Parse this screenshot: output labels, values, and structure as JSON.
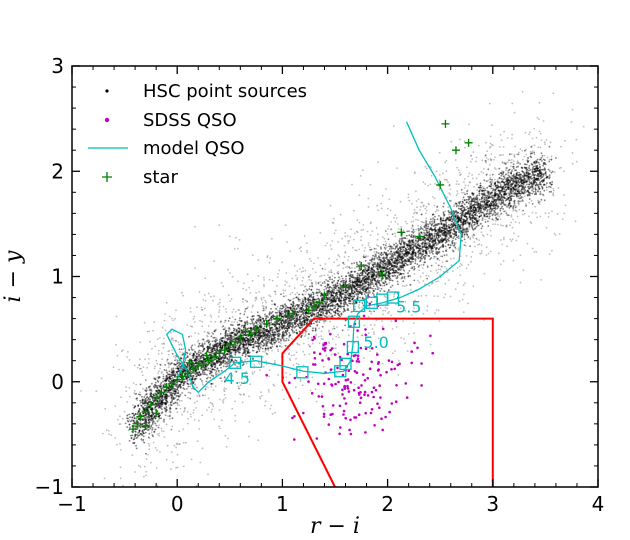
{
  "chart_data": {
    "type": "scatter",
    "title": "",
    "xlabel": "r − i",
    "ylabel": "i − y",
    "xlim": [
      -1,
      4
    ],
    "ylim": [
      -1,
      3
    ],
    "xticks": [
      "−1",
      "0",
      "1",
      "2",
      "3",
      "4"
    ],
    "yticks": [
      "−1",
      "0",
      "1",
      "2",
      "3"
    ],
    "xtick_values": [
      -1,
      0,
      1,
      2,
      3,
      4
    ],
    "ytick_values": [
      -1,
      0,
      1,
      2,
      3
    ],
    "legend_position": "upper-left",
    "legend": [
      {
        "label": "HSC point sources",
        "marker": "dot",
        "color": "#000000"
      },
      {
        "label": "SDSS QSO",
        "marker": "dot",
        "color": "#c000c0"
      },
      {
        "label": "model QSO",
        "marker": "line",
        "color": "#00bfbf"
      },
      {
        "label": "star",
        "marker": "plus",
        "color": "#008000"
      }
    ],
    "series": [
      {
        "name": "HSC point sources",
        "type": "density-scatter",
        "color": "#000000",
        "note_locus": "dense stellar locus running from about (-0.4,-0.45) to (2.6,2.1)",
        "locus": [
          [
            -0.4,
            -0.45
          ],
          [
            0.0,
            0.05
          ],
          [
            0.5,
            0.35
          ],
          [
            1.0,
            0.55
          ],
          [
            1.5,
            0.8
          ],
          [
            2.0,
            1.1
          ],
          [
            2.5,
            1.4
          ],
          [
            3.0,
            1.75
          ],
          [
            3.5,
            2.0
          ]
        ]
      },
      {
        "name": "SDSS QSO",
        "type": "scatter",
        "color": "#c000c0",
        "center": [
          1.65,
          0.05
        ],
        "spread": [
          0.28,
          0.28
        ]
      },
      {
        "name": "model QSO",
        "type": "line",
        "color": "#00bfbf",
        "points": [
          [
            2.18,
            2.47
          ],
          [
            2.3,
            2.2
          ],
          [
            2.45,
            1.95
          ],
          [
            2.6,
            1.65
          ],
          [
            2.7,
            1.4
          ],
          [
            2.68,
            1.15
          ],
          [
            2.5,
            1.0
          ],
          [
            2.3,
            0.88
          ],
          [
            2.12,
            0.8
          ],
          [
            1.95,
            0.75
          ],
          [
            1.8,
            0.72
          ],
          [
            1.72,
            0.65
          ],
          [
            1.68,
            0.55
          ],
          [
            1.67,
            0.35
          ],
          [
            1.65,
            0.2
          ],
          [
            1.58,
            0.1
          ],
          [
            1.4,
            0.08
          ],
          [
            1.2,
            0.1
          ],
          [
            1.0,
            0.15
          ],
          [
            0.75,
            0.2
          ],
          [
            0.55,
            0.18
          ],
          [
            0.45,
            0.1
          ],
          [
            0.3,
            0.0
          ],
          [
            0.2,
            -0.1
          ],
          [
            0.15,
            -0.05
          ],
          [
            0.1,
            0.1
          ],
          [
            0.0,
            0.25
          ],
          [
            -0.05,
            0.35
          ],
          [
            -0.1,
            0.45
          ],
          [
            -0.05,
            0.5
          ],
          [
            0.05,
            0.45
          ],
          [
            0.08,
            0.3
          ],
          [
            0.05,
            0.15
          ],
          [
            0.0,
            0.02
          ]
        ]
      },
      {
        "name": "model QSO redshift markers",
        "type": "square-markers",
        "color": "#00bfbf",
        "points": [
          [
            2.05,
            0.8
          ],
          [
            1.95,
            0.78
          ],
          [
            1.85,
            0.75
          ],
          [
            1.73,
            0.72
          ],
          [
            1.68,
            0.57
          ],
          [
            1.67,
            0.33
          ],
          [
            1.6,
            0.17
          ],
          [
            1.55,
            0.1
          ],
          [
            1.19,
            0.09
          ],
          [
            0.75,
            0.19
          ],
          [
            0.55,
            0.18
          ]
        ]
      },
      {
        "name": "star",
        "type": "scatter",
        "marker": "plus",
        "color": "#008000",
        "points": [
          [
            2.55,
            2.45
          ],
          [
            2.65,
            2.2
          ],
          [
            2.77,
            2.27
          ],
          [
            2.5,
            1.87
          ],
          [
            2.13,
            1.42
          ],
          [
            2.3,
            1.38
          ],
          [
            1.95,
            1.02
          ],
          [
            1.75,
            1.1
          ],
          [
            1.6,
            0.9
          ],
          [
            1.4,
            0.82
          ],
          [
            1.35,
            0.75
          ],
          [
            1.25,
            0.68
          ],
          [
            1.1,
            0.65
          ],
          [
            0.95,
            0.6
          ],
          [
            0.85,
            0.55
          ],
          [
            0.75,
            0.5
          ],
          [
            0.7,
            0.45
          ],
          [
            0.6,
            0.42
          ],
          [
            0.55,
            0.38
          ],
          [
            0.5,
            0.35
          ],
          [
            0.45,
            0.3
          ],
          [
            0.4,
            0.27
          ],
          [
            0.35,
            0.24
          ],
          [
            0.3,
            0.2
          ],
          [
            0.25,
            0.17
          ],
          [
            0.2,
            0.15
          ],
          [
            0.15,
            0.12
          ],
          [
            0.1,
            0.08
          ],
          [
            0.05,
            0.05
          ],
          [
            0.0,
            0.02
          ],
          [
            -0.05,
            -0.02
          ],
          [
            -0.1,
            -0.05
          ],
          [
            -0.15,
            -0.1
          ],
          [
            -0.2,
            -0.15
          ],
          [
            -0.25,
            -0.22
          ],
          [
            -0.3,
            -0.28
          ],
          [
            -0.35,
            -0.33
          ],
          [
            -0.38,
            -0.4
          ],
          [
            -0.42,
            -0.45
          ],
          [
            -0.3,
            -0.42
          ],
          [
            -0.2,
            -0.3
          ],
          [
            0.12,
            0.18
          ],
          [
            0.28,
            0.25
          ],
          [
            0.65,
            0.48
          ],
          [
            1.05,
            0.63
          ],
          [
            1.3,
            0.72
          ]
        ]
      },
      {
        "name": "selection region",
        "type": "polygon-line",
        "color": "#ff0000",
        "points": [
          [
            1.5,
            -1.0
          ],
          [
            1.0,
            0.0
          ],
          [
            1.0,
            0.27
          ],
          [
            1.3,
            0.6
          ],
          [
            3.0,
            0.6
          ],
          [
            3.0,
            -1.0
          ]
        ]
      }
    ],
    "annotations": [
      {
        "text": "4.5",
        "x": 0.45,
        "y": -0.02
      },
      {
        "text": "5.0",
        "x": 1.77,
        "y": 0.32
      },
      {
        "text": "5.5",
        "x": 2.08,
        "y": 0.66
      }
    ]
  }
}
